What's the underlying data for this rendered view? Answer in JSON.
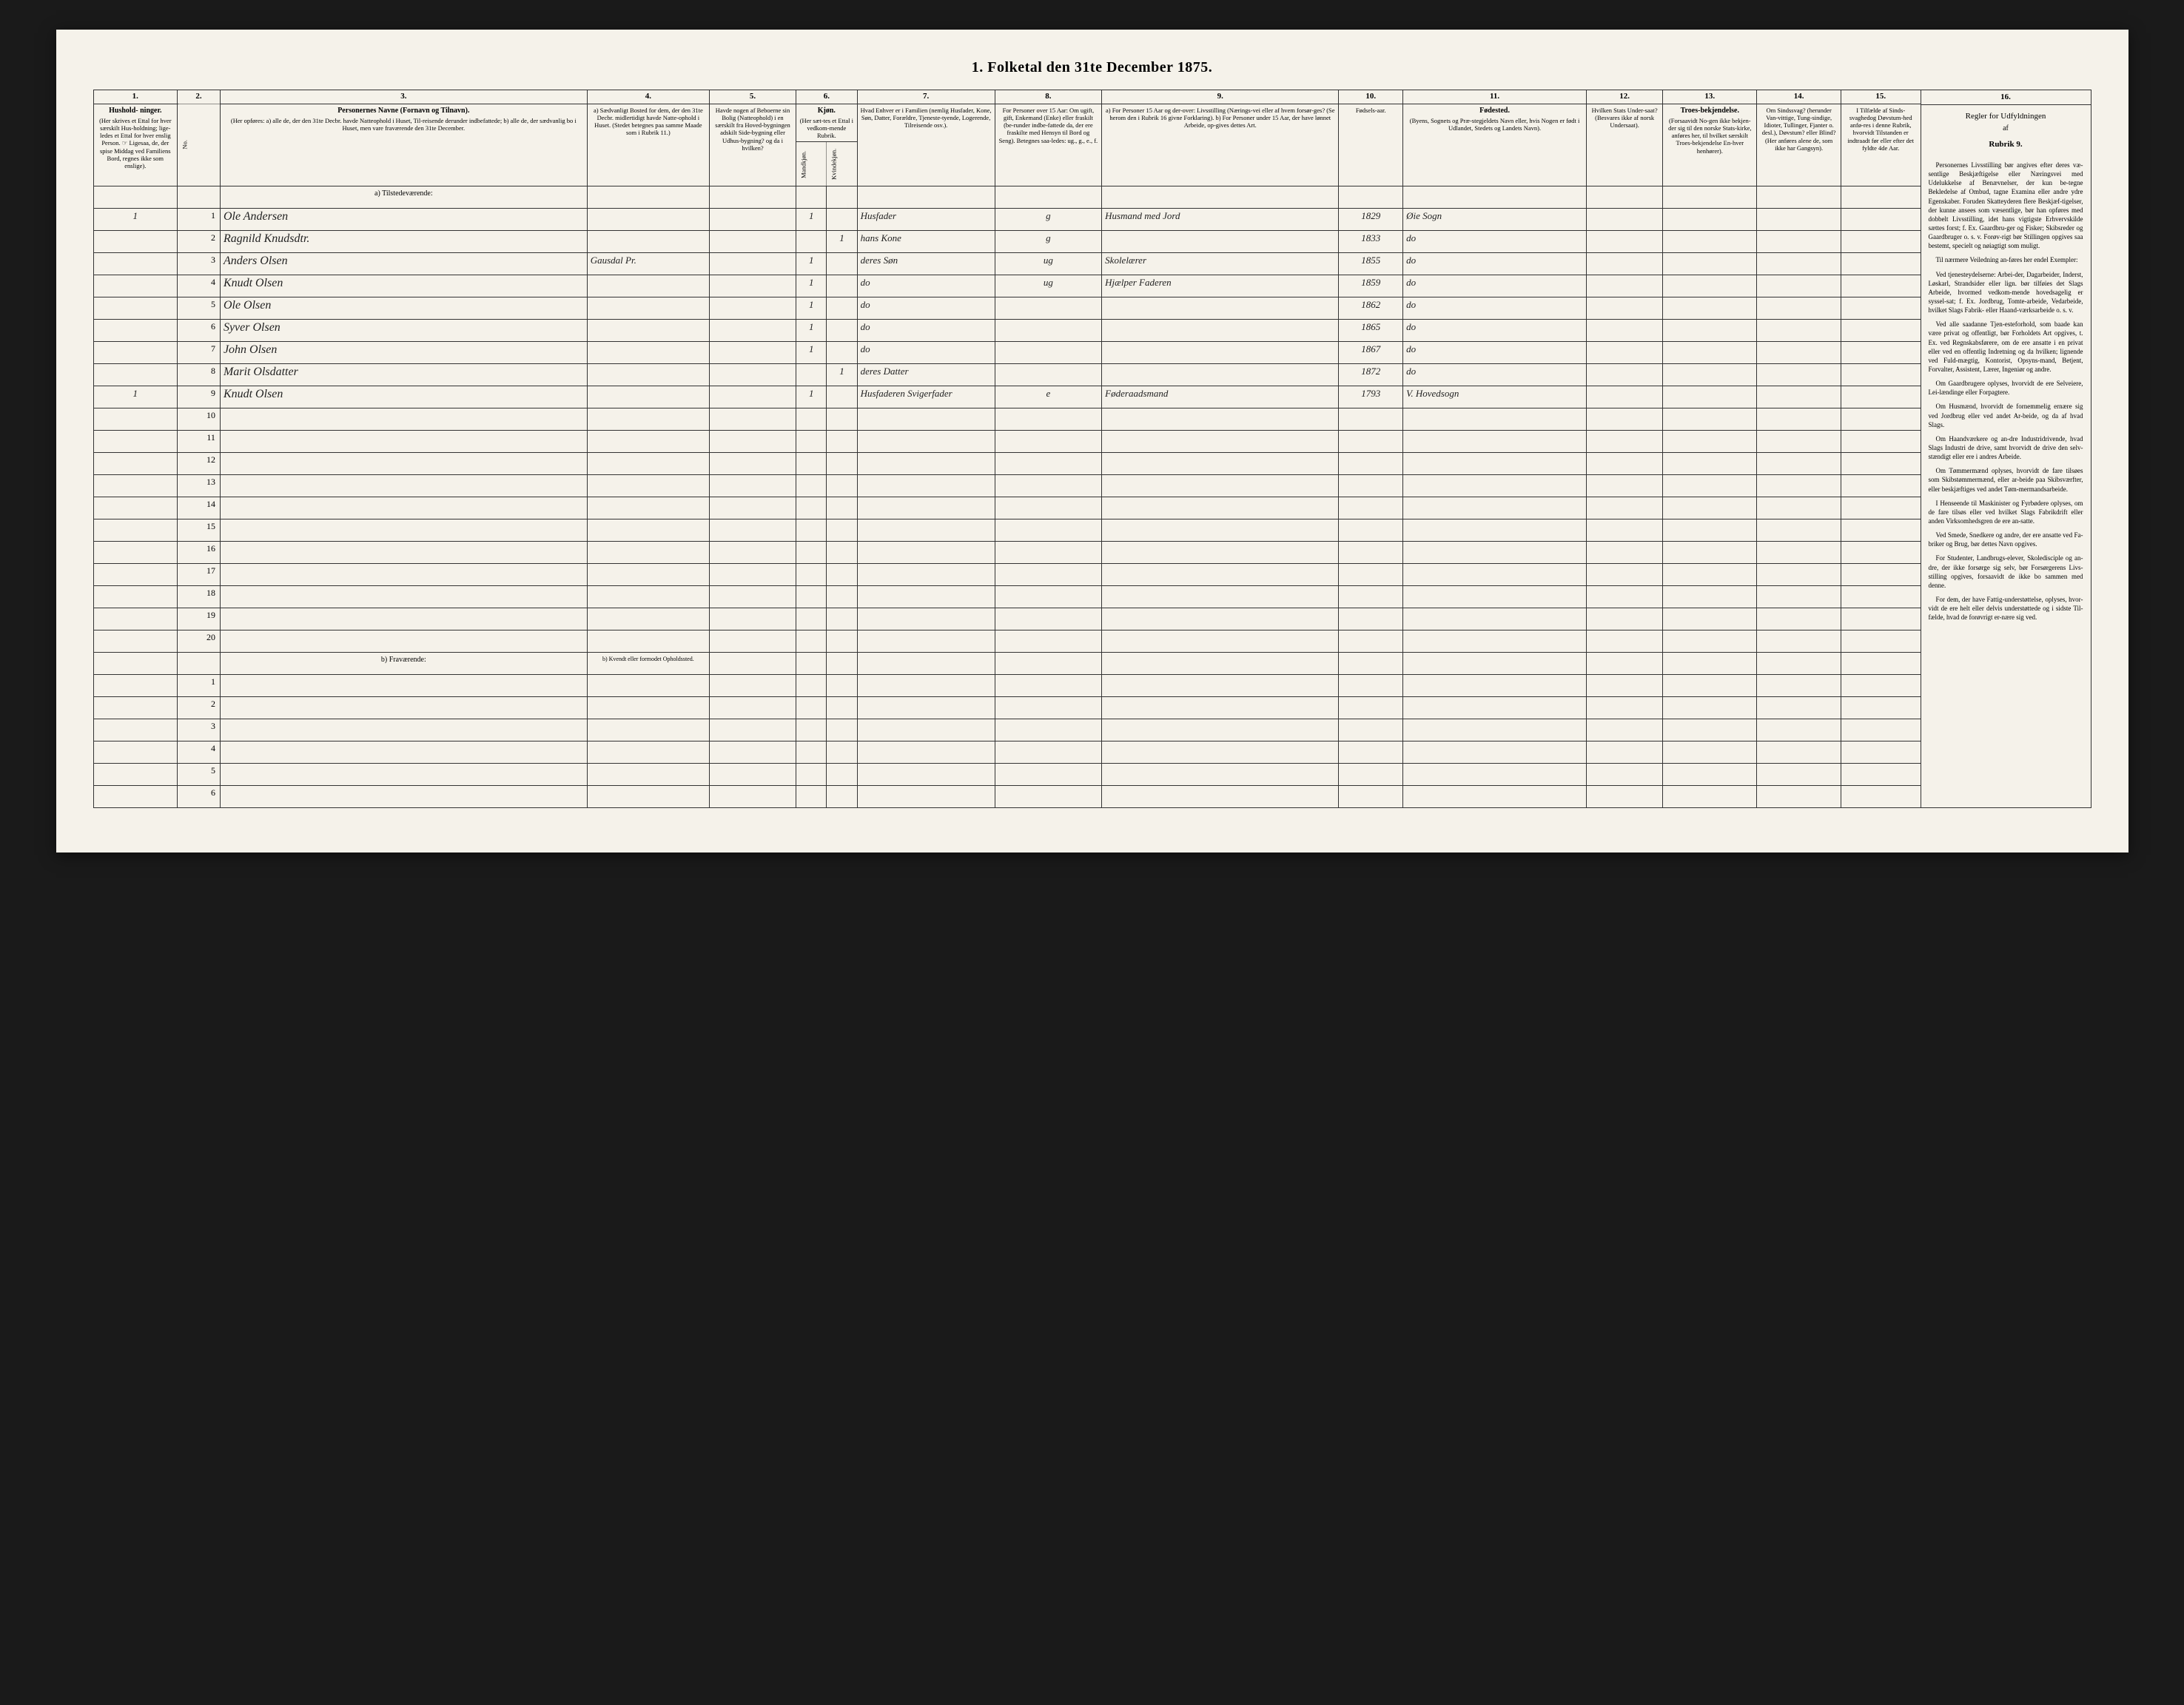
{
  "title": "1. Folketal den 31te December 1875.",
  "columns": {
    "nums": [
      "1.",
      "2.",
      "3.",
      "4.",
      "5.",
      "6.",
      "7.",
      "8.",
      "9.",
      "10.",
      "11.",
      "12.",
      "13.",
      "14.",
      "15.",
      "16."
    ],
    "h1": {
      "title": "Hushold-\nninger.",
      "body": "(Her skrives et Ettal for hver særskilt Hus-holdning; lige-ledes et Ettal for hver enslig Person.\n☞ Ligesaa, de, der spise Middag ved Familiens Bord, regnes ikke som enslige)."
    },
    "h2": "No.",
    "h3": {
      "title": "Personernes Navne (Fornavn og Tilnavn).",
      "body": "(Her opføres:\na) alle de, der den 31te Decbr. havde Natteophold i Huset, Til-reisende derunder indbefattede;\nb) alle de, der sædvanlig bo i Huset, men vare fraværende den 31te December."
    },
    "h4": {
      "body": "a) Sædvanligt Bosted for dem, der den 31te Decbr. midlertidigt havde Natte-ophold i Huset. (Stedet betegnes paa samme Maade som i Rubrik 11.)"
    },
    "h5": {
      "body": "Havde nogen af Beboerne sin Bolig (Natteophold) i en særskilt fra Hoved-bygningen adskilt Side-bygning eller Udhus-bygning? og da i hvilken?"
    },
    "h6": {
      "title": "Kjøn.",
      "body": "(Her sæt-tes et Ettal i vedkom-mende Rubrik."
    },
    "h6a": "Mandkjøn.",
    "h6b": "Kvindekjøn.",
    "h7": {
      "body": "Hvad Enhver er i Familien\n(nemlig Husfader, Kone, Søn, Datter, Forældre, Tjeneste-tyende, Logerende, Tilreisende osv.)."
    },
    "h8": {
      "body": "For Personer over 15 Aar: Om ugift, gift, Enkemand (Enke) eller fraskilt (be-runder indbe-fattede da, der ere fraskilte med Hensyn til Bord og Seng).\nBetegnes saa-ledes:\nug., g., e., f."
    },
    "h9": {
      "body": "a) For Personer 15 Aar og der-over: Livsstilling (Nærings-vei eller af hvem forsør-ges? (Se herom den i Rubrik 16 givne Forklaring).\nb) For Personer under 15 Aar, der have lønnet Arbeide, op-gives dettes Art."
    },
    "h10": "Fødsels-aar.",
    "h11": {
      "title": "Fødested.",
      "body": "(Byens, Sognets og Præ-stegjeldets Navn eller, hvis Nogen er født i Udlandet, Stedets og Landets Navn)."
    },
    "h12": {
      "body": "Hvilken Stats Under-saat?\n(Besvares ikke af norsk Undersaat)."
    },
    "h13": {
      "title": "Troes-bekjendelse.",
      "body": "(Forsaavidt No-gen ikke bekjen-der sig til den norske Stats-kirke, anføres her, til hvilket særskilt Troes-bekjendelse En-hver henhører)."
    },
    "h14": {
      "body": "Om Sindssvag? (herunder Van-vittige, Tung-sindige, Idioter, Tullinger, Fjanter o. desl.), Døvstum? eller Blind? (Her anføres alene de, som ikke har Gangsyn)."
    },
    "h15": {
      "body": "I Tilfælde af Sinds-svaghedog Døvstum-hed anfø-res i denne Rubrik, hvorvidt Tilstanden er indtraadt før eller efter det fyldte 4de Aar."
    }
  },
  "section_a": "a) Tilstedeværende:",
  "section_b": "b) Fraværende:",
  "section_b4": "b) Kvendt eller formodet Opholdssted.",
  "rows": [
    {
      "n": "1",
      "hh": "1",
      "name": "Ole Andersen",
      "c4": "",
      "c5": "",
      "c6a": "1",
      "c6b": "",
      "c7": "Husfader",
      "c8": "g",
      "c9": "Husmand med Jord",
      "c10": "1829",
      "c11": "Øie Sogn"
    },
    {
      "n": "2",
      "hh": "",
      "name": "Ragnild Knudsdtr.",
      "c4": "",
      "c5": "",
      "c6a": "",
      "c6b": "1",
      "c7": "hans Kone",
      "c8": "g",
      "c9": "",
      "c10": "1833",
      "c11": "do"
    },
    {
      "n": "3",
      "hh": "",
      "name": "Anders Olsen",
      "c4": "Gausdal Pr.",
      "c5": "",
      "c6a": "1",
      "c6b": "",
      "c7": "deres Søn",
      "c8": "ug",
      "c9": "Skolelærer",
      "c10": "1855",
      "c11": "do"
    },
    {
      "n": "4",
      "hh": "",
      "name": "Knudt Olsen",
      "c4": "",
      "c5": "",
      "c6a": "1",
      "c6b": "",
      "c7": "do",
      "c8": "ug",
      "c9": "Hjælper Faderen",
      "c10": "1859",
      "c11": "do"
    },
    {
      "n": "5",
      "hh": "",
      "name": "Ole Olsen",
      "c4": "",
      "c5": "",
      "c6a": "1",
      "c6b": "",
      "c7": "do",
      "c8": "",
      "c9": "",
      "c10": "1862",
      "c11": "do"
    },
    {
      "n": "6",
      "hh": "",
      "name": "Syver Olsen",
      "c4": "",
      "c5": "",
      "c6a": "1",
      "c6b": "",
      "c7": "do",
      "c8": "",
      "c9": "",
      "c10": "1865",
      "c11": "do"
    },
    {
      "n": "7",
      "hh": "",
      "name": "John Olsen",
      "c4": "",
      "c5": "",
      "c6a": "1",
      "c6b": "",
      "c7": "do",
      "c8": "",
      "c9": "",
      "c10": "1867",
      "c11": "do"
    },
    {
      "n": "8",
      "hh": "",
      "name": "Marit Olsdatter",
      "c4": "",
      "c5": "",
      "c6a": "",
      "c6b": "1",
      "c7": "deres Datter",
      "c8": "",
      "c9": "",
      "c10": "1872",
      "c11": "do"
    },
    {
      "n": "9",
      "hh": "1",
      "name": "Knudt Olsen",
      "c4": "",
      "c5": "",
      "c6a": "1",
      "c6b": "",
      "c7": "Husfaderen Svigerfader",
      "c8": "e",
      "c9": "Føderaadsmand",
      "c10": "1793",
      "c11": "V. Hovedsogn"
    }
  ],
  "empty_rows_a": [
    "10",
    "11",
    "12",
    "13",
    "14",
    "15",
    "16",
    "17",
    "18",
    "19",
    "20"
  ],
  "empty_rows_b": [
    "1",
    "2",
    "3",
    "4",
    "5",
    "6"
  ],
  "sidebar": {
    "title": "Regler for Udfyldningen",
    "sub": "af",
    "rub": "Rubrik 9.",
    "paras": [
      "Personernes Livsstilling bør angives efter deres væ-sentlige Beskjæftigelse eller Næringsvei med Udelukkelse af Benævnelser, der kun be-tegne Bekledelse af Ombud, tagne Examina eller andre ydre Egenskaber. Foruden Skatteyderen flere Beskjæf-tigelser, der kunne ansees som væsentlige, bør han opføres med dobbelt Livsstilling, idet hans vigtigste Erhvervskilde sættes forst; f. Ex. Gaardbru-ger og Fisker; Skibsreder og Gaardbruger o. s. v. Forøv-rigt bør Stillingen opgives saa bestemt, specielt og nøiagtigt som muligt.",
      "Til nærmere Veiledning an-føres her endel Exempler:",
      "Ved tjenesteydelserne: Arbei-der, Dagarbeider, Inderst, Løskarl, Strandsider eller lign. bør tilføies det Slags Arbeide, hvormed vedkom-mende hovedsagelig er syssel-sat; f. Ex. Jordbrug, Tomte-arbeide, Vedarbeide, hvilket Slags Fabrik- eller Haand-værksarbeide o. s. v.",
      "Ved alle saadanne Tjen-esteforhold, som baade kan være privat og offentligt, bør Forholdets Art opgives, t. Ex. ved Regnskabsførere, om de ere ansatte i en privat eller ved en offentlig Indretning og da hvilken; lignende ved Fuld-mægtig, Kontorist, Opsyns-mand, Betjent, Forvalter, Assistent, Lærer, Ingeniør og andre.",
      "Om Gaardbrugere oplyses, hvorvidt de ere Selveiere, Lei-lændinge eller Forpagtere.",
      "Om Husmænd, hvorvidt de fornemmelig ernære sig ved Jordbrug eller ved andet Ar-beide, og da af hvad Slags.",
      "Om Haandværkere og an-dre Industridrivende, hvad Slags Industri de drive, samt hvorvidt de drive den selv-stændigt eller ere i andres Arbeide.",
      "Om Tømmermænd oplyses, hvorvidt de fare tilsøes som Skibstømmermænd, eller ar-beide paa Skibsværfter, eller beskjæftiges ved andet Tøm-mermandsarbeide.",
      "I Henseende til Maskinister og Fyrbødere oplyses, om de fare tilsøs eller ved hvilket Slags Fabrikdrift eller anden Virksomhedsgren de ere an-satte.",
      "Ved Smede, Snedkere og andre, der ere ansatte ved Fa-briker og Brug, bør dettes Navn opgives.",
      "For Studenter, Landbrugs-elever, Skoledisciple og an-dre, der ikke forsørge sig selv, bør Forsørgerens Livs-stilling opgives, forsaavidt de ikke bo sammen med denne.",
      "For dem, der have Fattig-understøttelse, oplyses, hvor-vidt de ere helt eller delvis understøttede og i sidste Til-fælde, hvad de forøvrigt er-nære sig ved."
    ]
  }
}
